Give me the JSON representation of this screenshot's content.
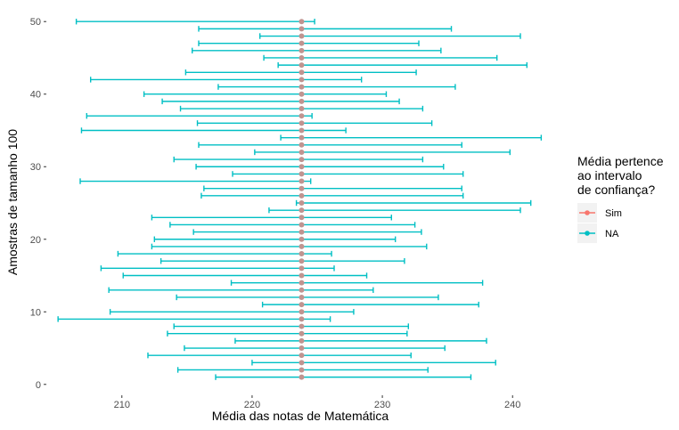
{
  "chart_data": {
    "type": "errorbar",
    "xlabel": "Média das notas de Matemática",
    "ylabel": "Amostras de tamanho 100",
    "xlim": [
      204.2,
      243.2
    ],
    "ylim": [
      -1.5,
      51.5
    ],
    "x_ticks": [
      210,
      220,
      230,
      240
    ],
    "y_ticks": [
      0,
      10,
      20,
      30,
      40,
      50
    ],
    "grid": false,
    "legend": {
      "position": "right",
      "title_lines": [
        "Média pertence",
        "ao intervalo",
        "de confiança?"
      ],
      "entries": [
        {
          "label": "Sim",
          "color": "#F8766D"
        },
        {
          "label": "NA",
          "color": "#00BFC4"
        }
      ]
    },
    "point_color": "#C09490",
    "interval_color": "#00BFC4",
    "series": [
      {
        "name": "NA",
        "intervals": [
          [
            1,
            217.2,
            236.8
          ],
          [
            2,
            214.3,
            233.5
          ],
          [
            3,
            220.0,
            238.7
          ],
          [
            4,
            212.0,
            232.2
          ],
          [
            5,
            214.8,
            234.8
          ],
          [
            6,
            218.7,
            238.0
          ],
          [
            7,
            213.5,
            231.9
          ],
          [
            8,
            214.0,
            232.0
          ],
          [
            9,
            205.1,
            226.0
          ],
          [
            10,
            209.1,
            227.8
          ],
          [
            11,
            220.8,
            237.4
          ],
          [
            12,
            214.2,
            234.3
          ],
          [
            13,
            209.0,
            229.3
          ],
          [
            14,
            218.4,
            237.7
          ],
          [
            15,
            210.1,
            228.8
          ],
          [
            16,
            208.4,
            226.3
          ],
          [
            17,
            213.0,
            231.7
          ],
          [
            18,
            209.7,
            226.1
          ],
          [
            19,
            212.3,
            233.4
          ],
          [
            20,
            212.5,
            231.0
          ],
          [
            21,
            215.5,
            233.0
          ],
          [
            22,
            213.7,
            232.5
          ],
          [
            23,
            212.3,
            230.7
          ],
          [
            24,
            221.3,
            240.6
          ],
          [
            25,
            223.4,
            241.4
          ],
          [
            26,
            216.1,
            236.2
          ],
          [
            27,
            216.3,
            236.1
          ],
          [
            28,
            206.8,
            224.5
          ],
          [
            29,
            218.5,
            236.2
          ],
          [
            30,
            215.7,
            234.7
          ],
          [
            31,
            214.0,
            233.1
          ],
          [
            32,
            220.2,
            239.8
          ],
          [
            33,
            215.9,
            236.1
          ],
          [
            34,
            222.2,
            242.2
          ],
          [
            35,
            206.9,
            227.2
          ],
          [
            36,
            215.8,
            233.8
          ],
          [
            37,
            207.3,
            224.6
          ],
          [
            38,
            214.5,
            233.1
          ],
          [
            39,
            213.1,
            231.3
          ],
          [
            40,
            211.7,
            230.3
          ],
          [
            41,
            217.4,
            235.6
          ],
          [
            42,
            207.6,
            228.4
          ],
          [
            43,
            214.9,
            232.6
          ],
          [
            44,
            222.0,
            241.1
          ],
          [
            45,
            220.9,
            238.8
          ],
          [
            46,
            215.4,
            234.5
          ],
          [
            47,
            215.9,
            232.8
          ],
          [
            48,
            220.6,
            240.6
          ],
          [
            49,
            215.9,
            235.3
          ],
          [
            50,
            206.5,
            224.8
          ]
        ]
      },
      {
        "name": "point_estimate",
        "x": 223.8
      }
    ]
  }
}
